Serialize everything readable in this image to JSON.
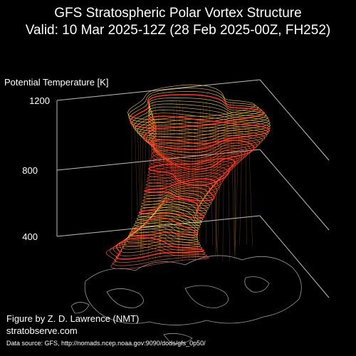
{
  "title": {
    "line1": "GFS Stratospheric Polar Vortex Structure",
    "line2": "Valid: 10 Mar 2025-12Z  (28 Feb 2025-00Z, FH252)"
  },
  "axis": {
    "label": "Potential Temperature [K]",
    "ticks": [
      "1200",
      "800",
      "400"
    ]
  },
  "credits": {
    "author": "Figure by Z. D. Lawrence (NMT)",
    "site": "stratobserve.com",
    "source": "Data source: GFS, http://nomads.ncep.noaa.gov:9090/dods/gfs_0p50/"
  },
  "colors": {
    "background": "#000000",
    "vortex_low": "#ff2a1a",
    "vortex_high": "#ffd43a",
    "axis_lines": "#bdbdbd",
    "coastlines": "#9a9a9a"
  }
}
